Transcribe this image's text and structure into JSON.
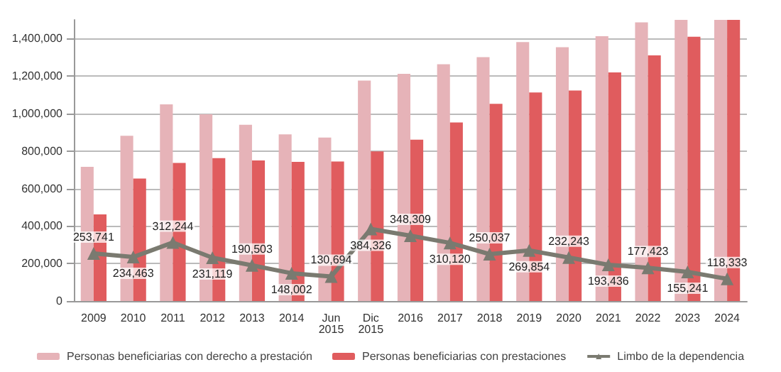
{
  "chart_data": {
    "type": "bar",
    "categories": [
      "2009",
      "2010",
      "2011",
      "2012",
      "2013",
      "2014",
      "Jun 2015",
      "Dic 2015",
      "2016",
      "2017",
      "2018",
      "2019",
      "2020",
      "2021",
      "2022",
      "2023",
      "2024"
    ],
    "series": [
      {
        "name": "Personas beneficiarias con derecho a prestación",
        "color": "#e6b3b8",
        "values": [
          716000,
          882000,
          1049000,
          996000,
          940000,
          889000,
          872000,
          1176000,
          1212000,
          1263000,
          1301000,
          1382000,
          1354000,
          1413000,
          1487000,
          1500000,
          1500000
        ]
      },
      {
        "name": "Personas beneficiarias con prestaciones",
        "color": "#e05c5e",
        "values": [
          462000,
          653000,
          737000,
          762000,
          750000,
          742000,
          744000,
          798000,
          861000,
          953000,
          1052000,
          1113000,
          1123000,
          1220000,
          1311000,
          1410000,
          1500000
        ]
      },
      {
        "name": "Limbo de la dependencia",
        "type": "line",
        "color": "#7a7a70",
        "marker": "triangle",
        "values": [
          253741,
          234463,
          312244,
          231119,
          190503,
          148002,
          130694,
          384326,
          348309,
          310120,
          250037,
          269854,
          232243,
          193436,
          177423,
          155241,
          118333
        ],
        "value_labels": [
          "253,741",
          "234,463",
          "312,244",
          "231,119",
          "190,503",
          "148,002",
          "130,694",
          "384,326",
          "348,309",
          "310,120",
          "250,037",
          "269,854",
          "232,243",
          "193,436",
          "177,423",
          "155,241",
          "118,333"
        ]
      }
    ],
    "ylim": [
      0,
      1500000
    ],
    "yticks": [
      0,
      {
        "value": 200000,
        "label": "200,000"
      },
      {
        "value": 400000,
        "label": "400,000"
      },
      {
        "value": 600000,
        "label": "600,000"
      },
      {
        "value": 800000,
        "label": "800,000"
      },
      {
        "value": 1000000,
        "label": "1,000,000"
      },
      {
        "value": 1200000,
        "label": "1,200,000"
      },
      {
        "value": 1400000,
        "label": "1,400,000"
      }
    ],
    "grid": "y",
    "legend": "bottom"
  }
}
